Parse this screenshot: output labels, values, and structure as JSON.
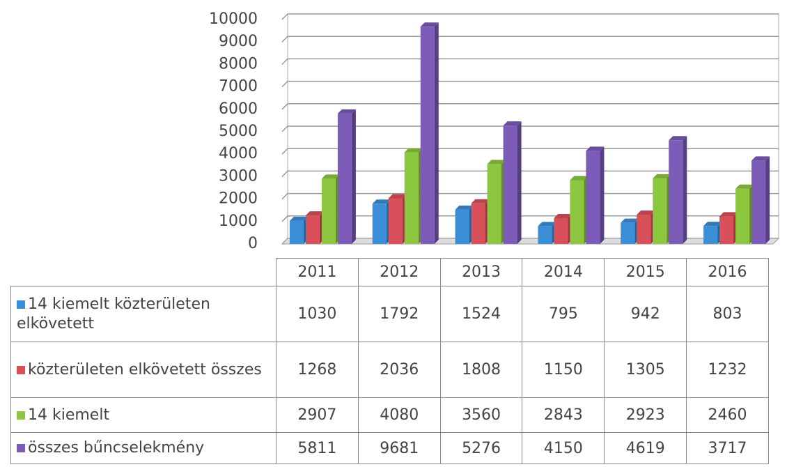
{
  "chart_data": {
    "type": "bar3d",
    "categories": [
      "2011",
      "2012",
      "2013",
      "2014",
      "2015",
      "2016"
    ],
    "series": [
      {
        "name": "14 kiemelt közterületen elkövetett",
        "color": "#3b8fd8",
        "values": [
          1030,
          1792,
          1524,
          795,
          942,
          803
        ]
      },
      {
        "name": "közterületen elkövetett összes",
        "color": "#d9505a",
        "values": [
          1268,
          2036,
          1808,
          1150,
          1305,
          1232
        ]
      },
      {
        "name": "14 kiemelt",
        "color": "#8dc63f",
        "values": [
          2907,
          4080,
          3560,
          2843,
          2923,
          2460
        ]
      },
      {
        "name": "összes bűncselekmény",
        "color": "#7c5cb8",
        "values": [
          5811,
          9681,
          5276,
          4150,
          4619,
          3717
        ]
      }
    ],
    "ylim": [
      0,
      10000
    ],
    "yticks": [
      0,
      1000,
      2000,
      3000,
      4000,
      5000,
      6000,
      7000,
      8000,
      9000,
      10000
    ],
    "grid": true
  }
}
